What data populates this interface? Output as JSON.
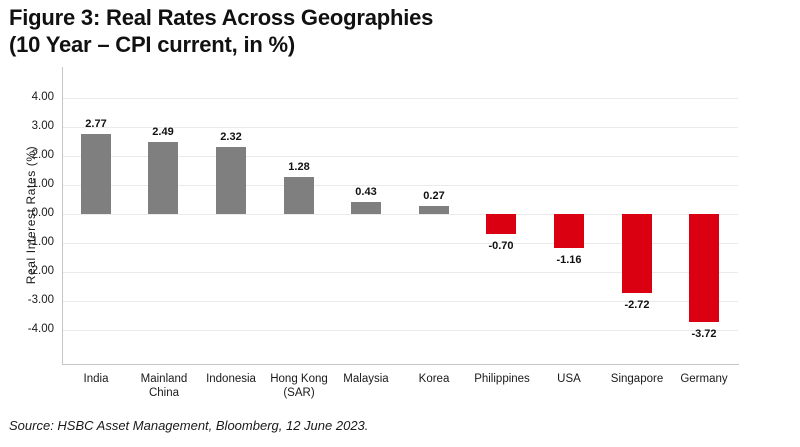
{
  "page": {
    "title_line1": "Figure 3: Real Rates Across Geographies",
    "title_line2": "(10 Year – CPI current, in %)",
    "source": "Source: HSBC Asset Management, Bloomberg, 12 June 2023."
  },
  "chart_data": {
    "type": "bar",
    "title": "Figure 3: Real Rates Across Geographies (10 Year – CPI current, in %)",
    "categories": [
      "India",
      "Mainland China",
      "Indonesia",
      "Hong Kong (SAR)",
      "Malaysia",
      "Korea",
      "Philippines",
      "USA",
      "Singapore",
      "Germany"
    ],
    "values": [
      2.77,
      2.49,
      2.32,
      1.28,
      0.43,
      0.27,
      -0.7,
      -1.16,
      -2.72,
      -3.72
    ],
    "value_labels": [
      "2.77",
      "2.49",
      "2.32",
      "1.28",
      "0.43",
      "0.27",
      "-0.70",
      "-1.16",
      "-2.72",
      "-3.72"
    ],
    "xlabel": "",
    "ylabel": "Real Interest Rates (%)",
    "yticks": [
      4,
      3,
      2,
      1,
      0,
      -1,
      -2,
      -3,
      -4
    ],
    "ytick_labels": [
      "4.00",
      "3.00",
      "2.00",
      "1.00",
      "0.00",
      "-1.00",
      "-2.00",
      "-3.00",
      "-4.00"
    ],
    "ylim": [
      -5.17,
      5.07
    ],
    "grid": true,
    "legend": false,
    "colors": {
      "positive_bar": "#7f7f7f",
      "negative_bar": "#db0011",
      "gridline": "#eaeaea",
      "axis_line": "#c6c6c6",
      "text": "#111111"
    }
  }
}
